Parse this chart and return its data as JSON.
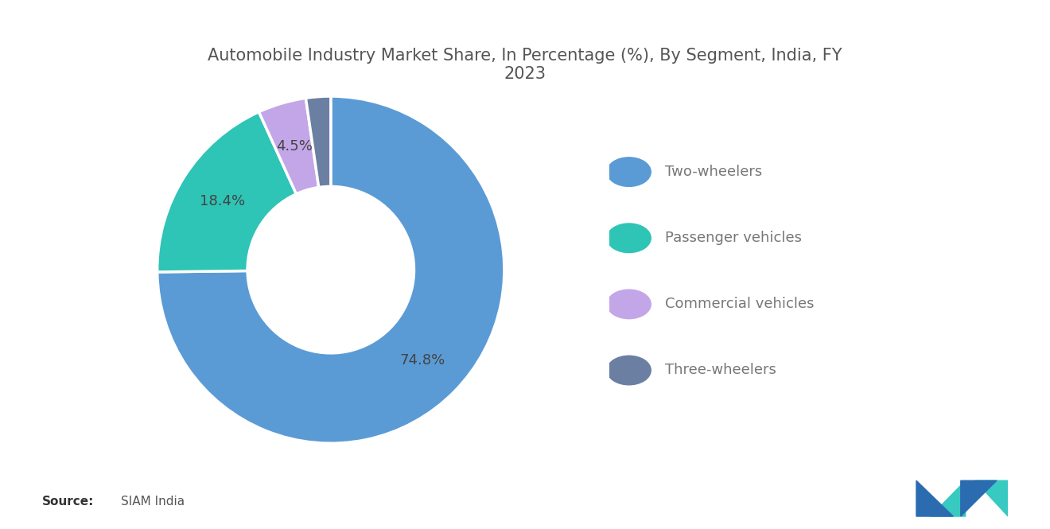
{
  "title": "Automobile Industry Market Share, In Percentage (%), By Segment, India, FY\n2023",
  "segments": [
    "Two-wheelers",
    "Passenger vehicles",
    "Commercial vehicles",
    "Three-wheelers"
  ],
  "values": [
    74.8,
    18.4,
    4.5,
    2.3
  ],
  "colors": [
    "#5B9BD5",
    "#2EC4B6",
    "#C3A6E8",
    "#6B7FA3"
  ],
  "labels": [
    "74.8%",
    "18.4%",
    "4.5%",
    ""
  ],
  "source_bold": "Source:",
  "source_text": "SIAM India",
  "background_color": "#ffffff",
  "title_color": "#555555",
  "title_fontsize": 15,
  "legend_fontsize": 13,
  "label_fontsize": 13
}
